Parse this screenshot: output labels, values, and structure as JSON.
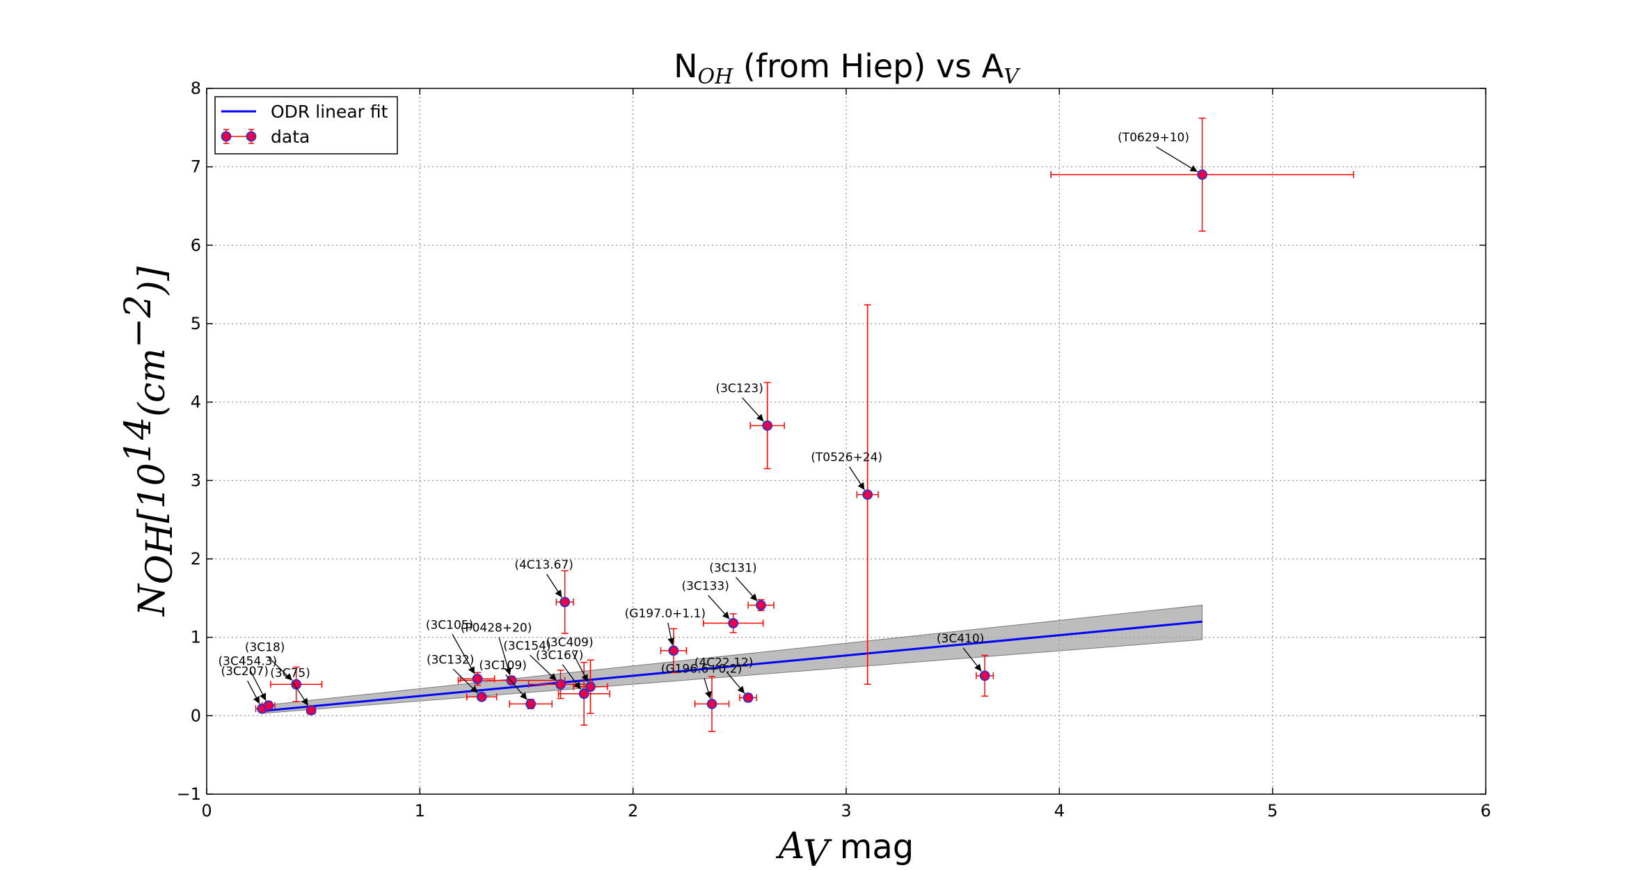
{
  "chart_data": {
    "type": "scatter",
    "title": {
      "main": "N",
      "main_sub": "OH",
      "rest": " (from Hiep) vs A",
      "rest_sub": "V"
    },
    "xlabel": {
      "var": "A",
      "var_sub": "V",
      "unit": " mag"
    },
    "ylabel": {
      "var": "N",
      "var_sub": "OH",
      "bracket_open": "[10",
      "exp": "14",
      "mid": "(cm",
      "exp2": "−2",
      "close": ")]"
    },
    "xlim": [
      0,
      6
    ],
    "ylim": [
      -1,
      8
    ],
    "xticks": [
      0,
      1,
      2,
      3,
      4,
      5,
      6
    ],
    "yticks": [
      -1,
      0,
      1,
      2,
      3,
      4,
      5,
      6,
      7,
      8
    ],
    "xtick_labels": [
      "0",
      "1",
      "2",
      "3",
      "4",
      "5",
      "6"
    ],
    "ytick_labels": [
      "−1",
      "0",
      "1",
      "2",
      "3",
      "4",
      "5",
      "6",
      "7",
      "8"
    ],
    "grid": true,
    "legend": {
      "position": "upper-left",
      "entries": [
        "ODR linear fit",
        "data"
      ]
    },
    "fit": {
      "name": "ODR linear fit",
      "x": [
        0.26,
        4.67
      ],
      "y": [
        0.06,
        1.2
      ],
      "band_upper": [
        0.13,
        1.41
      ],
      "band_lower": [
        0.03,
        0.97
      ],
      "color": "#0000ff",
      "band_color": "#999999"
    },
    "series": [
      {
        "name": "data",
        "marker_color": "#e8004a",
        "marker_edge": "#3030c0",
        "errorbar_color": "#ff0000",
        "points": [
          {
            "label": "(3C207)",
            "x": 0.26,
            "y": 0.09,
            "xerr": 0.03,
            "yerr": 0.05
          },
          {
            "label": "(3C454.3)",
            "x": 0.29,
            "y": 0.13,
            "xerr": 0.03,
            "yerr": 0.05
          },
          {
            "label": "(3C18)",
            "x": 0.42,
            "y": 0.4,
            "xerr": 0.12,
            "yerr": 0.22
          },
          {
            "label": "(3C75)",
            "x": 0.49,
            "y": 0.07,
            "xerr": 0.02,
            "yerr": 0.05
          },
          {
            "label": "(3C132)",
            "x": 1.29,
            "y": 0.24,
            "xerr": 0.07,
            "yerr": 0.04
          },
          {
            "label": "(3C105)",
            "x": 1.27,
            "y": 0.47,
            "xerr": 0.08,
            "yerr": 0.08
          },
          {
            "label": "(P0428+20)",
            "x": 1.43,
            "y": 0.45,
            "xerr": 0.25,
            "yerr": 0.05
          },
          {
            "label": "(3C109)",
            "x": 1.52,
            "y": 0.15,
            "xerr": 0.1,
            "yerr": 0.06
          },
          {
            "label": "(3C154)",
            "x": 1.66,
            "y": 0.4,
            "xerr": 0.15,
            "yerr": 0.18
          },
          {
            "label": "(3C167)",
            "x": 1.77,
            "y": 0.28,
            "xerr": 0.12,
            "yerr": 0.4
          },
          {
            "label": "(3C409)",
            "x": 1.8,
            "y": 0.37,
            "xerr": 0.08,
            "yerr": 0.34
          },
          {
            "label": "(4C13.67)",
            "x": 1.68,
            "y": 1.45,
            "xerr": 0.04,
            "yerr": 0.4
          },
          {
            "label": "(G197.0+1.1)",
            "x": 2.19,
            "y": 0.83,
            "xerr": 0.06,
            "yerr": 0.28
          },
          {
            "label": "(G196.6+0.2)",
            "x": 2.37,
            "y": 0.15,
            "xerr": 0.08,
            "yerr": 0.35
          },
          {
            "label": "(4C22.12)",
            "x": 2.54,
            "y": 0.23,
            "xerr": 0.04,
            "yerr": 0.05
          },
          {
            "label": "(3C133)",
            "x": 2.47,
            "y": 1.18,
            "xerr": 0.14,
            "yerr": 0.12
          },
          {
            "label": "(3C131)",
            "x": 2.6,
            "y": 1.41,
            "xerr": 0.06,
            "yerr": 0.07
          },
          {
            "label": "(3C123)",
            "x": 2.63,
            "y": 3.7,
            "xerr": 0.08,
            "yerr": 0.55
          },
          {
            "label": "(T0526+24)",
            "x": 3.1,
            "y": 2.82,
            "xerr": 0.05,
            "yerr": 2.42
          },
          {
            "label": "(3C410)",
            "x": 3.65,
            "y": 0.51,
            "xerr": 0.04,
            "yerr": 0.26
          },
          {
            "label": "(T0629+10)",
            "x": 4.67,
            "y": 6.9,
            "xerr": 0.71,
            "yerr": 0.72
          }
        ]
      }
    ]
  }
}
